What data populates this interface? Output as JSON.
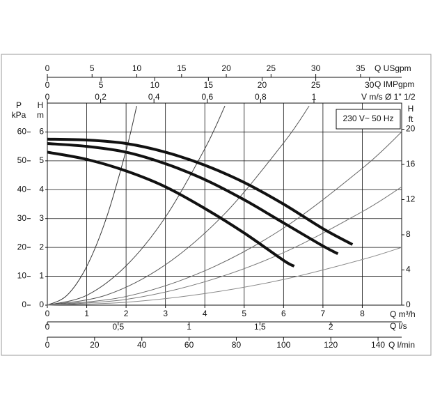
{
  "chart_data": {
    "type": "line",
    "label_box": "230 V~ 50 Hz",
    "xlabel": "Q m³/h",
    "xlim": [
      0,
      9
    ],
    "xticks": [
      0,
      1,
      2,
      3,
      4,
      5,
      6,
      7,
      8
    ],
    "ylabel": "H",
    "ylabel_unit": "m",
    "ylim": [
      0,
      7
    ],
    "yticks": [
      0,
      1,
      2,
      3,
      4,
      5,
      6
    ],
    "grid": true,
    "pressure_axis": {
      "label": "P",
      "unit": "kPa",
      "lim": [
        0,
        70
      ],
      "ticks": [
        0,
        10,
        20,
        30,
        40,
        50,
        60
      ]
    },
    "y2label": "H",
    "y2label_unit": "ft",
    "y2lim": [
      0,
      22.97
    ],
    "y2ticks": [
      0,
      4,
      8,
      12,
      16,
      20
    ],
    "top_axes": [
      {
        "label": "Q USgpm",
        "lim": [
          0,
          39.6
        ],
        "ticks": [
          0,
          5,
          10,
          15,
          20,
          25,
          30,
          35
        ]
      },
      {
        "label": "Q IMPgpm",
        "lim": [
          0,
          33
        ],
        "ticks": [
          0,
          5,
          10,
          15,
          20,
          25,
          30
        ]
      },
      {
        "label": "V m/s Ø 1\" 1/2",
        "lim": [
          0,
          1.329
        ],
        "ticks": [
          0,
          {
            "value": 0.2,
            "label": "0,2"
          },
          {
            "value": 0.4,
            "label": "0,4"
          },
          {
            "value": 0.6,
            "label": "0,6"
          },
          {
            "value": 0.8,
            "label": "0,8"
          },
          1
        ]
      }
    ],
    "bottom_axes": [
      {
        "label": "Q l/s",
        "lim": [
          0,
          2.5
        ],
        "ticks": [
          0,
          {
            "value": 0.5,
            "label": "0,5"
          },
          1,
          {
            "value": 1.5,
            "label": "1,5"
          },
          2
        ]
      },
      {
        "label": "Q l/min",
        "lim": [
          0,
          150
        ],
        "ticks": [
          0,
          20,
          40,
          60,
          80,
          100,
          120,
          140
        ]
      }
    ],
    "series": [
      {
        "color": "#111111",
        "x": [
          0,
          1,
          2,
          3,
          4,
          5,
          6,
          7,
          7.75
        ],
        "values": [
          5.75,
          5.72,
          5.6,
          5.3,
          4.85,
          4.25,
          3.5,
          2.65,
          2.1
        ]
      },
      {
        "color": "#111111",
        "x": [
          0,
          1,
          2,
          3,
          4,
          5,
          6,
          7,
          7.38
        ],
        "values": [
          5.6,
          5.5,
          5.3,
          4.9,
          4.35,
          3.65,
          2.85,
          2.05,
          1.78
        ]
      },
      {
        "color": "#111111",
        "x": [
          0,
          1,
          2,
          3,
          4,
          5,
          6,
          6.27
        ],
        "values": [
          5.3,
          5.05,
          4.65,
          4.1,
          3.35,
          2.5,
          1.55,
          1.35
        ]
      }
    ],
    "system_curves": [
      {
        "color": "#333333",
        "x": [
          0,
          0.5,
          1,
          1.5,
          2,
          2.27
        ],
        "values": [
          0,
          0.34,
          1.34,
          3.02,
          5.36,
          6.9
        ]
      },
      {
        "color": "#444444",
        "x": [
          0,
          1,
          2,
          3,
          4,
          4.51
        ],
        "values": [
          0,
          0.34,
          1.36,
          3.05,
          5.42,
          6.9
        ]
      },
      {
        "color": "#555555",
        "x": [
          0,
          1.5,
          3,
          4.5,
          6,
          6.65
        ],
        "values": [
          0,
          0.35,
          1.4,
          3.16,
          5.62,
          6.9
        ]
      },
      {
        "color": "#666666",
        "x": [
          0,
          2,
          4,
          6,
          8,
          9
        ],
        "values": [
          0,
          0.3,
          1.19,
          2.67,
          4.74,
          6.0
        ]
      },
      {
        "color": "#777777",
        "x": [
          0,
          2,
          4,
          6,
          8,
          9
        ],
        "values": [
          0,
          0.2,
          0.81,
          1.82,
          3.24,
          4.1
        ]
      },
      {
        "color": "#888888",
        "x": [
          0,
          2,
          4,
          6,
          8,
          9
        ],
        "values": [
          0,
          0.1,
          0.4,
          0.89,
          1.58,
          2.0
        ]
      }
    ]
  }
}
